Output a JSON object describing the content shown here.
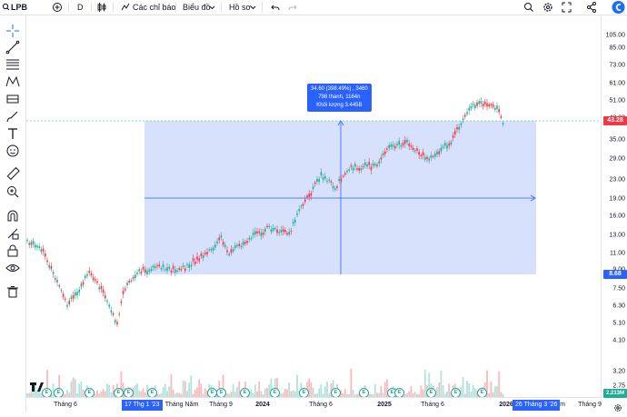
{
  "toolbar": {
    "symbol": "LPB",
    "interval": "D",
    "indicators_label": "Các chỉ báo",
    "chart_label": "Biểu đồ",
    "profile_label": "Hồ sơ"
  },
  "measure": {
    "line1": "34.60 (398.49%) , 3460",
    "line2": "798 thanh, 1164n",
    "line3": "Khối lượng 3.445B"
  },
  "y_axis": {
    "ticks": [
      "105.00",
      "85.00",
      "73.00",
      "61.00",
      "51.00",
      "43.00",
      "35.00",
      "29.00",
      "23.00",
      "19.00",
      "16.00",
      "13.00",
      "11.00",
      "9.00",
      "7.50",
      "6.30",
      "5.10",
      "4.10",
      "3.20",
      "2.75"
    ],
    "current_price": "43.28",
    "lower_price": "8.68",
    "volume_value": "2.213M"
  },
  "x_axis": {
    "labels": [
      "Tháng 6",
      "Tháng Năm",
      "Tháng 9",
      "2024",
      "Tháng 6",
      "2025",
      "Tháng 6",
      "Tháng 9"
    ],
    "start_highlight": "17 Thg 1 '23",
    "end_highlight": "26 Tháng 3 '26",
    "partial_year": "2026",
    "partial_month": "m"
  },
  "events": [
    "E",
    "E",
    "E",
    "E",
    "E",
    "E",
    "E",
    "E",
    "E",
    "E",
    "E",
    "E",
    "E",
    "E",
    "E",
    "E",
    "E",
    "E"
  ],
  "colors": {
    "accent": "#2962ff",
    "up": "#22ab94",
    "down": "#f23645",
    "range_fill": "#d1dcfb"
  }
}
